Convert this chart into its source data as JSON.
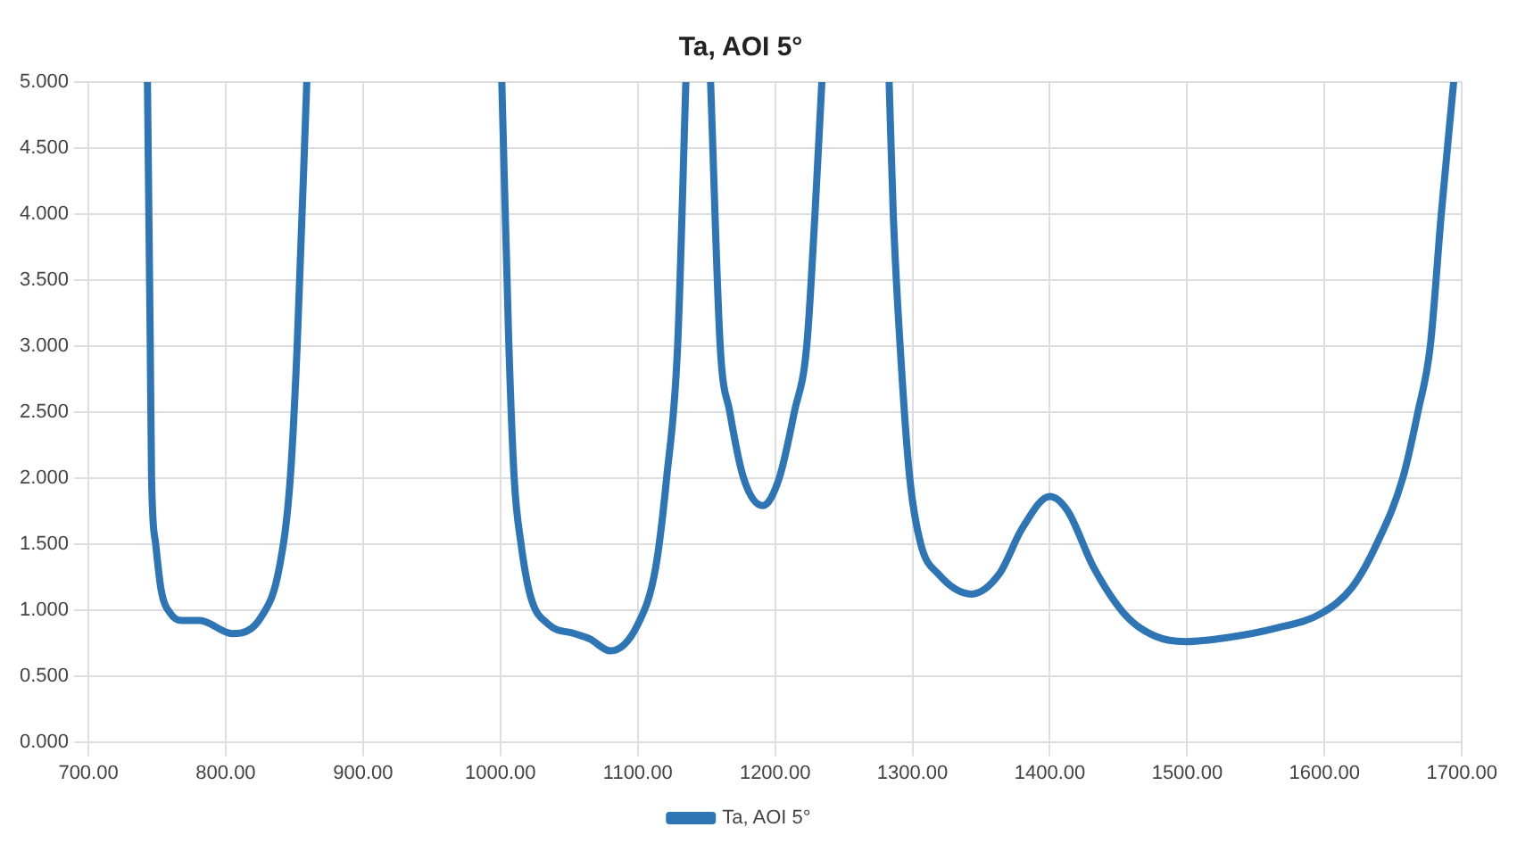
{
  "chart_data": {
    "type": "line",
    "title": "Ta, AOI 5°",
    "x": [
      743,
      745,
      746,
      749,
      753,
      760,
      768,
      781,
      805,
      826,
      839,
      847,
      852,
      859,
      900,
      1001,
      1006,
      1010,
      1015,
      1022,
      1035,
      1054,
      1065,
      1080,
      1100,
      1113,
      1121,
      1129,
      1135,
      1145,
      1153,
      1160,
      1167,
      1177,
      1191,
      1203,
      1214,
      1223,
      1229,
      1234,
      1260,
      1283,
      1286,
      1291,
      1298,
      1306,
      1319,
      1343,
      1363,
      1380,
      1400,
      1413,
      1432,
      1456,
      1477,
      1499,
      1529,
      1564,
      1597,
      1620,
      1638,
      1657,
      1668,
      1677,
      1685,
      1694
    ],
    "series": [
      {
        "name": "Ta, AOI 5°",
        "color": "#2e75b6",
        "values": [
          5,
          3.05,
          2.0,
          1.5,
          1.15,
          0.97,
          0.92,
          0.92,
          0.82,
          0.95,
          1.32,
          2.0,
          3.0,
          5,
          null,
          5,
          3.05,
          2.0,
          1.5,
          1.1,
          0.89,
          0.82,
          0.78,
          0.69,
          0.89,
          1.32,
          2.0,
          3.0,
          5,
          null,
          5,
          3.0,
          2.5,
          2.0,
          1.79,
          2.0,
          2.5,
          3.0,
          4.0,
          5,
          null,
          5,
          4.0,
          3.0,
          2.0,
          1.5,
          1.27,
          1.12,
          1.27,
          1.62,
          1.86,
          1.75,
          1.32,
          0.95,
          0.8,
          0.76,
          0.79,
          0.86,
          0.97,
          1.17,
          1.5,
          2.0,
          2.5,
          3.0,
          4.0,
          5
        ]
      }
    ],
    "xlim": [
      700,
      1700
    ],
    "xticks": [
      {
        "value": 700,
        "label": "700.00"
      },
      {
        "value": 800,
        "label": "800.00"
      },
      {
        "value": 900,
        "label": "900.00"
      },
      {
        "value": 1000,
        "label": "1000.00"
      },
      {
        "value": 1100,
        "label": "1100.00"
      },
      {
        "value": 1200,
        "label": "1200.00"
      },
      {
        "value": 1300,
        "label": "1300.00"
      },
      {
        "value": 1400,
        "label": "1400.00"
      },
      {
        "value": 1500,
        "label": "1500.00"
      },
      {
        "value": 1600,
        "label": "1600.00"
      },
      {
        "value": 1700,
        "label": "1700.00"
      }
    ],
    "ylim": [
      0,
      5
    ],
    "yticks": [
      {
        "value": 0,
        "label": "0.000"
      },
      {
        "value": 0.5,
        "label": "0.500"
      },
      {
        "value": 1,
        "label": "1.000"
      },
      {
        "value": 1.5,
        "label": "1.500"
      },
      {
        "value": 2,
        "label": "2.000"
      },
      {
        "value": 2.5,
        "label": "2.500"
      },
      {
        "value": 3,
        "label": "3.000"
      },
      {
        "value": 3.5,
        "label": "3.500"
      },
      {
        "value": 4,
        "label": "4.000"
      },
      {
        "value": 4.5,
        "label": "4.500"
      },
      {
        "value": 5,
        "label": "5.000"
      }
    ],
    "grid": true,
    "legend": "bottom",
    "marker": "none",
    "line_style": "solid"
  }
}
